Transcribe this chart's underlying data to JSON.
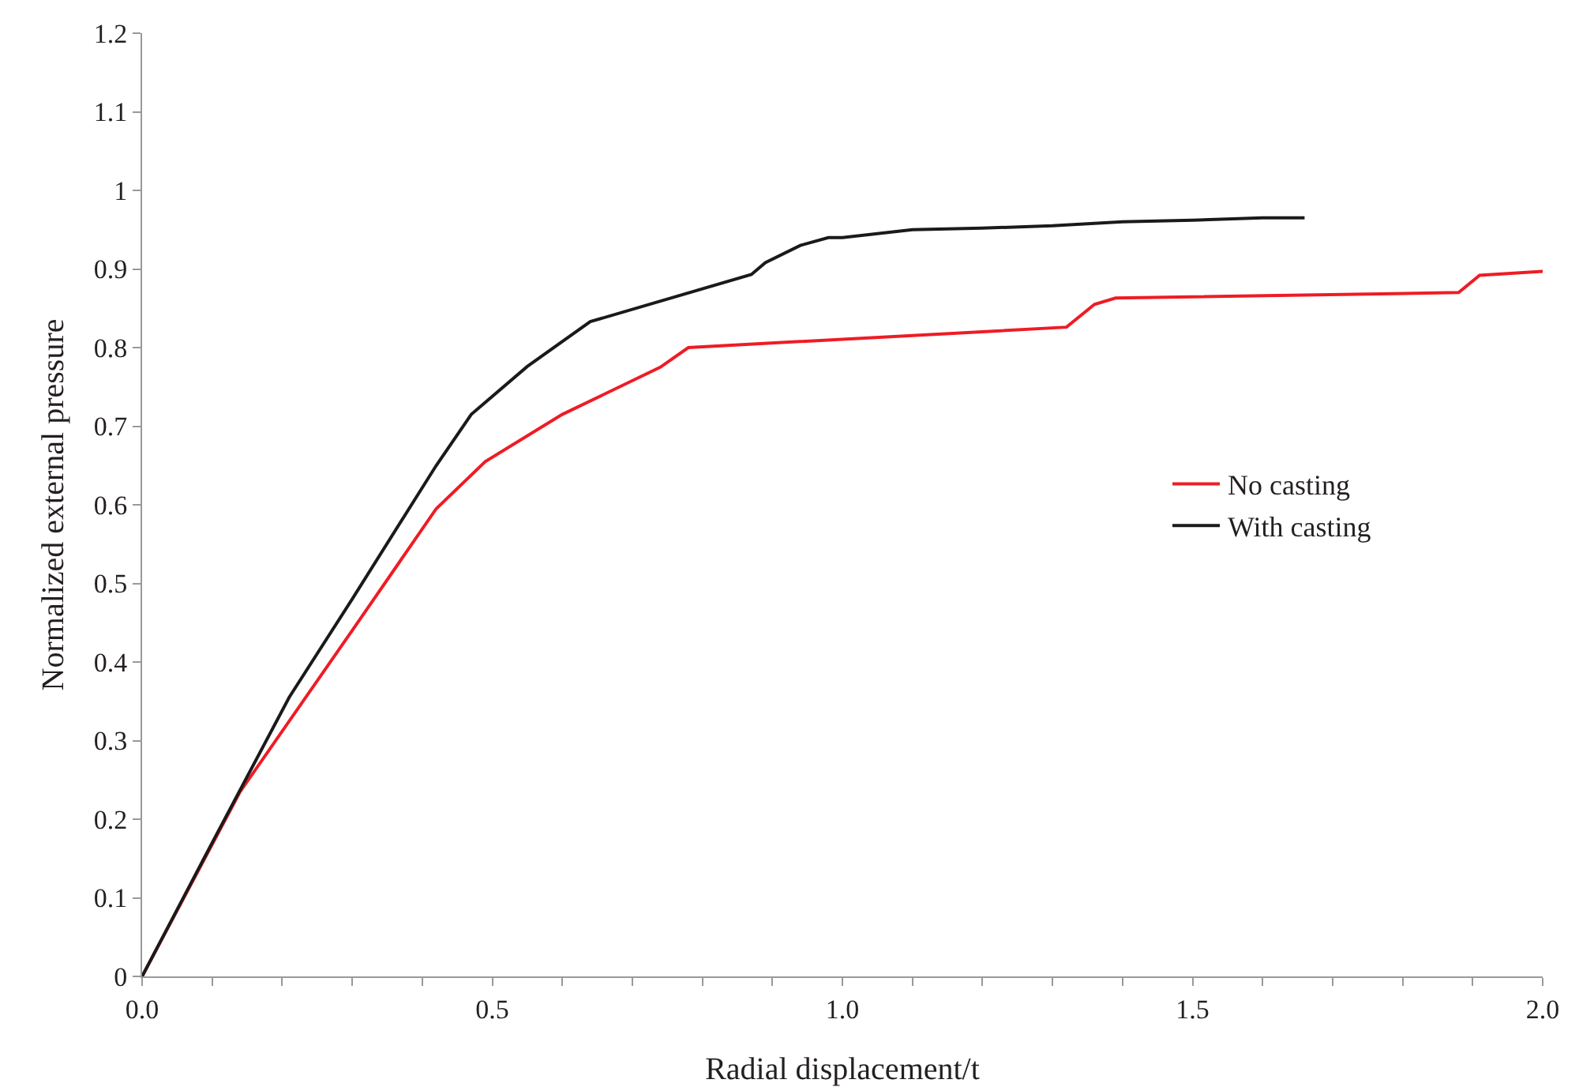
{
  "chart_data": {
    "type": "line",
    "xlabel": "Radial displacement/t",
    "ylabel": "Normalized external pressure",
    "xlim": [
      0,
      2
    ],
    "ylim": [
      0,
      1.2
    ],
    "xticks": [
      {
        "value": 0,
        "label": "0.0"
      },
      {
        "value": 0.1,
        "label": null
      },
      {
        "value": 0.2,
        "label": null
      },
      {
        "value": 0.3,
        "label": null
      },
      {
        "value": 0.4,
        "label": null
      },
      {
        "value": 0.5,
        "label": "0.5"
      },
      {
        "value": 0.6,
        "label": null
      },
      {
        "value": 0.7,
        "label": null
      },
      {
        "value": 0.8,
        "label": null
      },
      {
        "value": 0.9,
        "label": null
      },
      {
        "value": 1,
        "label": "1.0"
      },
      {
        "value": 1.1,
        "label": null
      },
      {
        "value": 1.2,
        "label": null
      },
      {
        "value": 1.3,
        "label": null
      },
      {
        "value": 1.4,
        "label": null
      },
      {
        "value": 1.5,
        "label": "1.5"
      },
      {
        "value": 1.6,
        "label": null
      },
      {
        "value": 1.7,
        "label": null
      },
      {
        "value": 1.8,
        "label": null
      },
      {
        "value": 1.9,
        "label": null
      },
      {
        "value": 2,
        "label": "2.0"
      }
    ],
    "yticks": [
      0,
      0.1,
      0.2,
      0.3,
      0.4,
      0.5,
      0.6,
      0.7,
      0.8,
      0.9,
      1,
      1.1,
      1.2
    ],
    "grid": false,
    "legend": "right",
    "marker": "none",
    "line_style": "solid",
    "series": [
      {
        "name": "No casting",
        "color": "#ee1c25",
        "x": [
          0,
          0.14,
          0.3,
          0.42,
          0.49,
          0.6,
          0.74,
          0.78,
          1.32,
          1.36,
          1.39,
          1.88,
          1.91,
          2.0
        ],
        "values": [
          0,
          0.235,
          0.44,
          0.595,
          0.655,
          0.715,
          0.775,
          0.8,
          0.826,
          0.855,
          0.863,
          0.87,
          0.892,
          0.897
        ]
      },
      {
        "name": "With casting",
        "color": "#1a1a1a",
        "x": [
          0,
          0.1,
          0.21,
          0.3,
          0.42,
          0.47,
          0.55,
          0.64,
          0.87,
          0.89,
          0.94,
          0.98,
          1.0,
          1.1,
          1.2,
          1.3,
          1.4,
          1.5,
          1.6,
          1.66
        ],
        "values": [
          0,
          0.17,
          0.355,
          0.48,
          0.65,
          0.715,
          0.776,
          0.833,
          0.893,
          0.908,
          0.93,
          0.94,
          0.94,
          0.95,
          0.952,
          0.955,
          0.96,
          0.962,
          0.965,
          0.965
        ]
      }
    ]
  }
}
